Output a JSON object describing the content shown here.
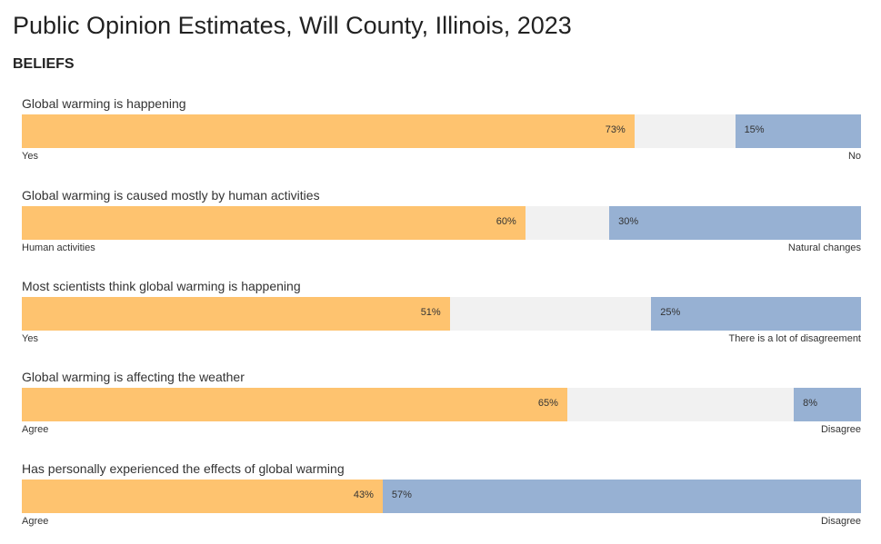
{
  "page": {
    "title": "Public Opinion Estimates, Will County, Illinois, 2023",
    "section": "BELIEFS"
  },
  "colors": {
    "left_bar": "#fec36f",
    "right_bar": "#97b1d3",
    "track": "#f1f1f1"
  },
  "chart_data": {
    "type": "bar",
    "orientation": "horizontal-diverging-stacked",
    "xlim": [
      0,
      100
    ],
    "unit": "%",
    "rows": [
      {
        "question": "Global warming is happening",
        "left_label": "Yes",
        "left_value": 73,
        "left_text": "73%",
        "right_label": "No",
        "right_value": 15,
        "right_text": "15%"
      },
      {
        "question": "Global warming is caused mostly by human activities",
        "left_label": "Human activities",
        "left_value": 60,
        "left_text": "60%",
        "right_label": "Natural changes",
        "right_value": 30,
        "right_text": "30%"
      },
      {
        "question": "Most scientists think global warming is happening",
        "left_label": "Yes",
        "left_value": 51,
        "left_text": "51%",
        "right_label": "There is a lot of disagreement",
        "right_value": 25,
        "right_text": "25%"
      },
      {
        "question": "Global warming is affecting the weather",
        "left_label": "Agree",
        "left_value": 65,
        "left_text": "65%",
        "right_label": "Disagree",
        "right_value": 8,
        "right_text": "8%"
      },
      {
        "question": "Has personally experienced the effects of global warming",
        "left_label": "Agree",
        "left_value": 43,
        "left_text": "43%",
        "right_label": "Disagree",
        "right_value": 57,
        "right_text": "57%"
      }
    ]
  }
}
